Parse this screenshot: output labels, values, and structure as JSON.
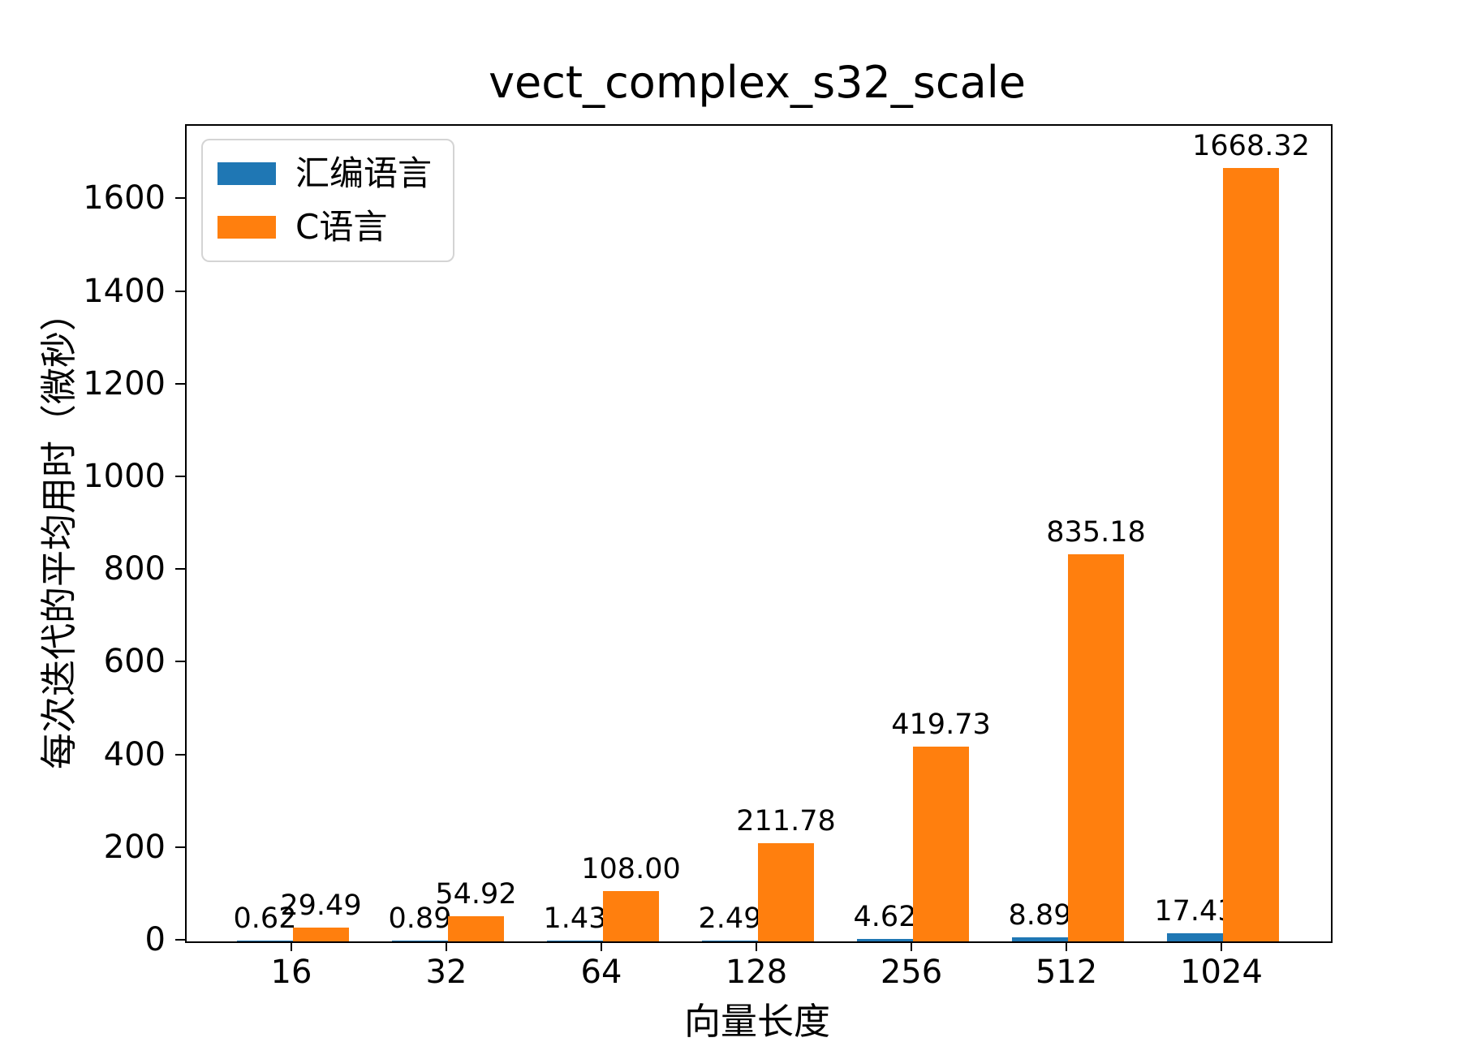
{
  "chart_data": {
    "type": "bar",
    "title": "vect_complex_s32_scale",
    "xlabel": "向量长度",
    "ylabel": "每次迭代的平均用时（微秒）",
    "categories": [
      "16",
      "32",
      "64",
      "128",
      "256",
      "512",
      "1024"
    ],
    "series": [
      {
        "id": "assembly",
        "name": "汇编语言",
        "color": "#1f77b4",
        "values": [
          0.62,
          0.89,
          1.43,
          2.49,
          4.62,
          8.89,
          17.43
        ],
        "labels": [
          "0.62",
          "0.89",
          "1.43",
          "2.49",
          "4.62",
          "8.89",
          "17.43"
        ]
      },
      {
        "id": "c",
        "name": "C语言",
        "color": "#ff7f0e",
        "values": [
          29.49,
          54.92,
          108.0,
          211.78,
          419.73,
          835.18,
          1668.32
        ],
        "labels": [
          "29.49",
          "54.92",
          "108.00",
          "211.78",
          "419.73",
          "835.18",
          "1668.32"
        ]
      }
    ],
    "yticks": [
      0,
      200,
      400,
      600,
      800,
      1000,
      1200,
      1400,
      1600
    ],
    "ylim": [
      0,
      1760
    ],
    "grid": false,
    "legend_position": "upper-left",
    "bar_value_labels": true,
    "colors": {
      "axis": "#000000",
      "background": "#ffffff",
      "legend_border": "#d4d4d4"
    }
  }
}
